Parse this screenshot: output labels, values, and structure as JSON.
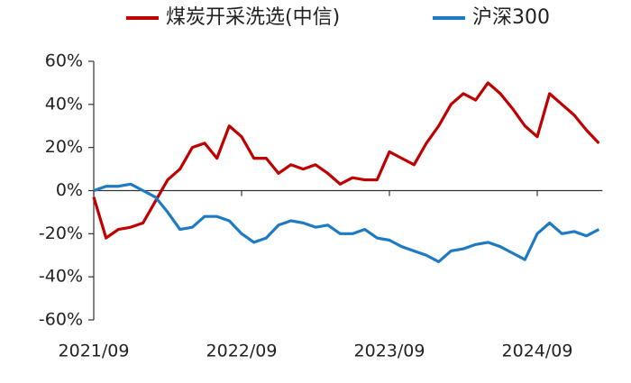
{
  "chart_data": {
    "type": "line",
    "x": [
      "2021/09",
      "2021/10",
      "2021/11",
      "2021/12",
      "2022/01",
      "2022/02",
      "2022/03",
      "2022/04",
      "2022/05",
      "2022/06",
      "2022/07",
      "2022/08",
      "2022/09",
      "2022/10",
      "2022/11",
      "2022/12",
      "2023/01",
      "2023/02",
      "2023/03",
      "2023/04",
      "2023/05",
      "2023/06",
      "2023/07",
      "2023/08",
      "2023/09",
      "2023/10",
      "2023/11",
      "2023/12",
      "2024/01",
      "2024/02",
      "2024/03",
      "2024/04",
      "2024/05",
      "2024/06",
      "2024/07",
      "2024/08",
      "2024/09",
      "2024/10",
      "2024/11",
      "2024/12",
      "2025/01",
      "2025/02"
    ],
    "series": [
      {
        "name": "煤炭开采洗选(中信)",
        "color": "#c00000",
        "values": [
          -3,
          -22,
          -18,
          -17,
          -15,
          -5,
          5,
          10,
          20,
          22,
          15,
          30,
          25,
          15,
          15,
          8,
          12,
          10,
          12,
          8,
          3,
          6,
          5,
          5,
          18,
          15,
          12,
          22,
          30,
          40,
          45,
          42,
          50,
          45,
          38,
          30,
          25,
          45,
          40,
          35,
          28,
          22
        ]
      },
      {
        "name": "沪深300",
        "color": "#1f7bc1",
        "values": [
          0,
          2,
          2,
          3,
          0,
          -3,
          -10,
          -18,
          -17,
          -12,
          -12,
          -14,
          -20,
          -24,
          -22,
          -16,
          -14,
          -15,
          -17,
          -16,
          -20,
          -20,
          -18,
          -22,
          -23,
          -26,
          -28,
          -30,
          -33,
          -28,
          -27,
          -25,
          -24,
          -26,
          -29,
          -32,
          -20,
          -15,
          -20,
          -19,
          -21,
          -18
        ]
      }
    ],
    "xticks": [
      "2021/09",
      "2022/09",
      "2023/09",
      "2024/09"
    ],
    "ylim": [
      -60,
      60
    ],
    "yticks": [
      {
        "value": -60,
        "label": "-60%"
      },
      {
        "value": -40,
        "label": "-40%"
      },
      {
        "value": -20,
        "label": "-20%"
      },
      {
        "value": 0,
        "label": "0%"
      },
      {
        "value": 20,
        "label": "20%"
      },
      {
        "value": 40,
        "label": "40%"
      },
      {
        "value": 60,
        "label": "60%"
      }
    ]
  }
}
